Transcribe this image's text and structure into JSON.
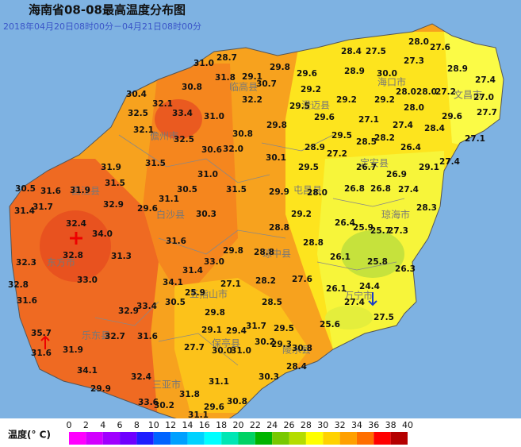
{
  "header": {
    "title": "海南省08-08最高温度分布图",
    "subtitle": "2018年04月20日08时00分－04月21日08时00分"
  },
  "stations": [
    "31.0",
    "28.7",
    "29.8",
    "28.4",
    "27.5",
    "28.0",
    "27.6",
    "27.3",
    "28.9",
    "30.8",
    "31.8",
    "29.1",
    "30.7",
    "29.6",
    "28.9",
    "30.0",
    "27.4",
    "30.4",
    "29.2",
    "28.0",
    "28.0",
    "27.2",
    "27.0",
    "32.1",
    "32.2",
    "29.5",
    "29.2",
    "29.2",
    "28.0",
    "33.4",
    "32.5",
    "31.0",
    "29.8",
    "29.6",
    "27.1",
    "29.6",
    "27.7",
    "32.1",
    "30.8",
    "27.4",
    "28.4",
    "32.5",
    "29.5",
    "28.5",
    "28.2",
    "27.1",
    "30.6",
    "32.0",
    "28.9",
    "26.4",
    "27.2",
    "30.1",
    "31.9",
    "31.5",
    "29.5",
    "26.7",
    "29.1",
    "27.4",
    "31.0",
    "26.9",
    "31.5",
    "30.5",
    "31.6",
    "31.9",
    "30.5",
    "31.5",
    "29.9",
    "28.0",
    "26.8",
    "26.8",
    "27.4",
    "31.7",
    "31.4",
    "32.9",
    "31.1",
    "29.6",
    "30.3",
    "29.2",
    "28.3",
    "32.4",
    "26.4",
    "25.9",
    "25.7",
    "27.3",
    "28.8",
    "34.0",
    "31.6",
    "28.8",
    "29.8",
    "28.8",
    "32.8",
    "31.3",
    "33.0",
    "26.1",
    "25.8",
    "32.3",
    "26.3",
    "31.4",
    "34.1",
    "33.0",
    "27.1",
    "28.2",
    "27.6",
    "32.8",
    "24.4",
    "25.9",
    "26.1",
    "31.6",
    "33.4",
    "30.5",
    "28.5",
    "27.4",
    "32.9",
    "29.8",
    "27.5",
    "25.6",
    "31.7",
    "29.5",
    "29.1",
    "29.4",
    "35.7",
    "32.7",
    "31.6",
    "30.2",
    "29.3",
    "30.8",
    "27.7",
    "30.0",
    "31.0",
    "31.6",
    "31.9",
    "28.4",
    "34.1",
    "31.1",
    "30.3",
    "32.4",
    "29.9",
    "31.8",
    "33.6",
    "30.2",
    "30.8",
    "29.6",
    "31.1"
  ],
  "places": [
    "海口市",
    "文昌市",
    "临高县",
    "澄迈县",
    "儋州市",
    "定安县",
    "屯昌县",
    "琼海市",
    "白沙县",
    "昌江县",
    "东方市",
    "琼中县",
    "五指山市",
    "万宁市",
    "乐东县",
    "保亭县",
    "陵水县",
    "三亚市"
  ],
  "legend": {
    "label": "温度(° C)",
    "ticks": [
      0,
      2,
      4,
      6,
      8,
      10,
      12,
      14,
      16,
      18,
      20,
      22,
      24,
      26,
      28,
      30,
      32,
      34,
      36,
      38,
      40
    ],
    "colors": [
      "#ff00ff",
      "#d200ff",
      "#a000ff",
      "#6e00ff",
      "#1e1eff",
      "#0064ff",
      "#00a0ff",
      "#00d2ff",
      "#00ffff",
      "#00e6b4",
      "#00d264",
      "#00b400",
      "#78c800",
      "#b4dc00",
      "#ffff00",
      "#ffd200",
      "#ffa000",
      "#ff6e00",
      "#ff0000",
      "#b40000"
    ]
  }
}
